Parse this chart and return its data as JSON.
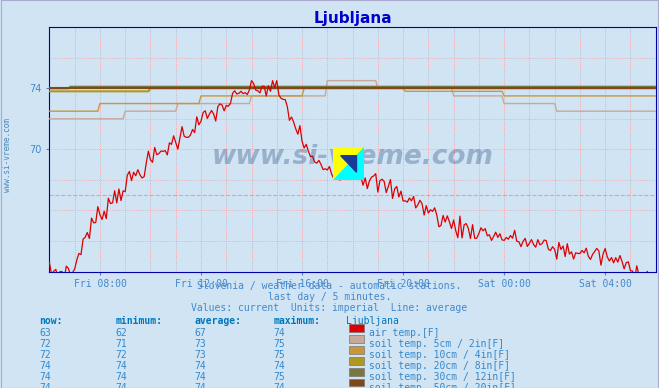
{
  "title": "Ljubljana",
  "bg_color": "#d0e4f4",
  "plot_bg_color": "#d0e4f4",
  "title_color": "#0000cc",
  "tick_color": "#4488cc",
  "grid_color_dotted": "#ff9090",
  "grid_color_solid": "#ffaaaa",
  "footer_color": "#4488cc",
  "footer_text": [
    "Slovenia / weather data - automatic stations.",
    "last day / 5 minutes.",
    "Values: current  Units: imperial  Line: average"
  ],
  "xtick_labels": [
    "Fri 08:00",
    "Fri 12:00",
    "Fri 16:00",
    "Fri 20:00",
    "Sat 00:00",
    "Sat 04:00"
  ],
  "ytick_labels": [
    "70",
    "74"
  ],
  "ytick_values": [
    70,
    74
  ],
  "ylim_min": 62,
  "ylim_max": 78,
  "series_colors": {
    "air_temp": "#dd0000",
    "soil_5cm": "#c8a898",
    "soil_10cm": "#c89838",
    "soil_20cm": "#b09820",
    "soil_30cm": "#787840",
    "soil_50cm": "#804818"
  },
  "legend_colors": {
    "air_temp": "#dd0000",
    "soil_5cm": "#c8a898",
    "soil_10cm": "#c89838",
    "soil_20cm": "#b09820",
    "soil_30cm": "#787840",
    "soil_50cm": "#804818"
  },
  "table_header_color": "#0077bb",
  "table_value_color": "#3388cc",
  "table_headers": [
    "now:",
    "minimum:",
    "average:",
    "maximum:",
    "Ljubljana"
  ],
  "table_rows": [
    [
      63,
      62,
      67,
      74,
      "air_temp",
      "air temp.[F]"
    ],
    [
      72,
      71,
      73,
      75,
      "soil_5cm",
      "soil temp. 5cm / 2in[F]"
    ],
    [
      72,
      72,
      73,
      75,
      "soil_10cm",
      "soil temp. 10cm / 4in[F]"
    ],
    [
      74,
      74,
      74,
      74,
      "soil_20cm",
      "soil temp. 20cm / 8in[F]"
    ],
    [
      74,
      74,
      74,
      75,
      "soil_30cm",
      "soil temp. 30cm / 12in[F]"
    ],
    [
      74,
      74,
      74,
      74,
      "soil_50cm",
      "soil temp. 50cm / 20in[F]"
    ]
  ],
  "watermark_text": "www.si-vreme.com",
  "watermark_color": "#1a3a6a",
  "watermark_alpha": 0.3,
  "left_label": "www.si-vreme.com",
  "left_label_color": "#3377aa"
}
